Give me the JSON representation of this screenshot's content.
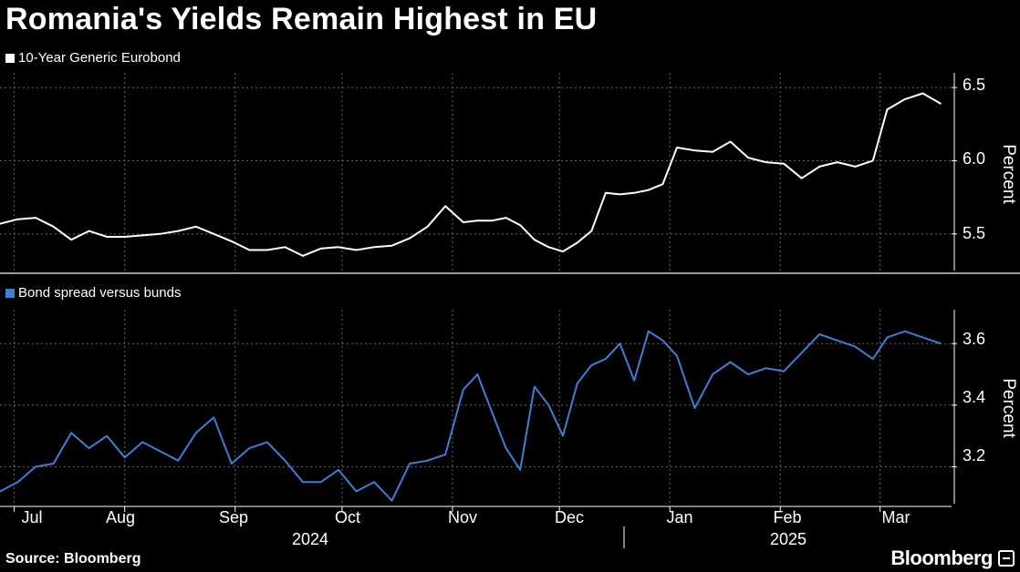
{
  "title": "Romania's Yields Remain Highest in EU",
  "source": "Source: Bloomberg",
  "brand": "Bloomberg",
  "brand_icon": "bloomberg-terminal-icon",
  "colors": {
    "top_line": "#ffffff",
    "bottom_line": "#3d7fd6",
    "grid": "#666666",
    "background": "#000000"
  },
  "x_axis": {
    "months": [
      "Jul",
      "Aug",
      "Sep",
      "Oct",
      "Nov",
      "Dec",
      "Jan",
      "Feb",
      "Mar"
    ],
    "years": [
      "2024",
      "2025"
    ]
  },
  "chart_data": [
    {
      "type": "line",
      "legend": "10-Year Generic Eurobond",
      "ylabel": "Percent",
      "yticks": [
        "6.5",
        "6.0",
        "5.5"
      ],
      "ylim": [
        5.25,
        6.6
      ],
      "grid": true,
      "legend_position": "top-left",
      "series": [
        {
          "name": "10-Year Generic Eurobond",
          "color": "#ffffff",
          "x": [
            "2024-06-27",
            "2024-07-02",
            "2024-07-07",
            "2024-07-12",
            "2024-07-17",
            "2024-07-22",
            "2024-07-27",
            "2024-08-01",
            "2024-08-06",
            "2024-08-11",
            "2024-08-16",
            "2024-08-21",
            "2024-08-26",
            "2024-08-31",
            "2024-09-05",
            "2024-09-10",
            "2024-09-15",
            "2024-09-20",
            "2024-09-25",
            "2024-09-30",
            "2024-10-05",
            "2024-10-10",
            "2024-10-15",
            "2024-10-20",
            "2024-10-25",
            "2024-10-30",
            "2024-11-04",
            "2024-11-08",
            "2024-11-12",
            "2024-11-16",
            "2024-11-20",
            "2024-11-24",
            "2024-11-28",
            "2024-12-02",
            "2024-12-06",
            "2024-12-10",
            "2024-12-14",
            "2024-12-18",
            "2024-12-22",
            "2024-12-26",
            "2024-12-30",
            "2025-01-03",
            "2025-01-08",
            "2025-01-13",
            "2025-01-18",
            "2025-01-23",
            "2025-01-28",
            "2025-02-02",
            "2025-02-07",
            "2025-02-12",
            "2025-02-17",
            "2025-02-22",
            "2025-02-27",
            "2025-03-03",
            "2025-03-08",
            "2025-03-13",
            "2025-03-18"
          ],
          "values": [
            5.57,
            5.6,
            5.61,
            5.55,
            5.46,
            5.52,
            5.48,
            5.48,
            5.49,
            5.5,
            5.52,
            5.55,
            5.5,
            5.45,
            5.39,
            5.39,
            5.41,
            5.35,
            5.4,
            5.41,
            5.39,
            5.41,
            5.42,
            5.47,
            5.55,
            5.69,
            5.58,
            5.59,
            5.59,
            5.61,
            5.56,
            5.46,
            5.41,
            5.38,
            5.44,
            5.52,
            5.78,
            5.77,
            5.78,
            5.8,
            5.84,
            6.09,
            6.07,
            6.06,
            6.13,
            6.02,
            5.99,
            5.98,
            5.88,
            5.96,
            5.99,
            5.96,
            6.0,
            6.35,
            6.42,
            6.46,
            6.39
          ]
        }
      ]
    },
    {
      "type": "line",
      "legend": "Bond spread versus bunds",
      "ylabel": "Percent",
      "yticks": [
        "3.6",
        "3.4",
        "3.2"
      ],
      "ylim": [
        3.08,
        3.71
      ],
      "grid": true,
      "legend_position": "top-left",
      "series": [
        {
          "name": "Bond spread versus bunds",
          "color": "#3d7fd6",
          "x": [
            "2024-06-27",
            "2024-07-02",
            "2024-07-07",
            "2024-07-12",
            "2024-07-17",
            "2024-07-22",
            "2024-07-27",
            "2024-08-01",
            "2024-08-06",
            "2024-08-11",
            "2024-08-16",
            "2024-08-21",
            "2024-08-26",
            "2024-08-31",
            "2024-09-05",
            "2024-09-10",
            "2024-09-15",
            "2024-09-20",
            "2024-09-25",
            "2024-09-30",
            "2024-10-05",
            "2024-10-10",
            "2024-10-15",
            "2024-10-20",
            "2024-10-25",
            "2024-10-30",
            "2024-11-04",
            "2024-11-08",
            "2024-11-12",
            "2024-11-16",
            "2024-11-20",
            "2024-11-24",
            "2024-11-28",
            "2024-12-02",
            "2024-12-06",
            "2024-12-10",
            "2024-12-14",
            "2024-12-18",
            "2024-12-22",
            "2024-12-26",
            "2024-12-30",
            "2025-01-03",
            "2025-01-08",
            "2025-01-13",
            "2025-01-18",
            "2025-01-23",
            "2025-01-28",
            "2025-02-02",
            "2025-02-07",
            "2025-02-12",
            "2025-02-17",
            "2025-02-22",
            "2025-02-27",
            "2025-03-03",
            "2025-03-08",
            "2025-03-13",
            "2025-03-18"
          ],
          "values": [
            3.12,
            3.15,
            3.2,
            3.21,
            3.31,
            3.26,
            3.3,
            3.23,
            3.28,
            3.25,
            3.22,
            3.31,
            3.36,
            3.21,
            3.26,
            3.28,
            3.22,
            3.15,
            3.15,
            3.19,
            3.12,
            3.15,
            3.09,
            3.21,
            3.22,
            3.24,
            3.45,
            3.5,
            3.38,
            3.26,
            3.19,
            3.46,
            3.4,
            3.3,
            3.47,
            3.53,
            3.55,
            3.6,
            3.48,
            3.64,
            3.61,
            3.56,
            3.39,
            3.5,
            3.54,
            3.5,
            3.52,
            3.51,
            3.57,
            3.63,
            3.61,
            3.59,
            3.55,
            3.62,
            3.64,
            3.62,
            3.6
          ]
        }
      ]
    }
  ]
}
